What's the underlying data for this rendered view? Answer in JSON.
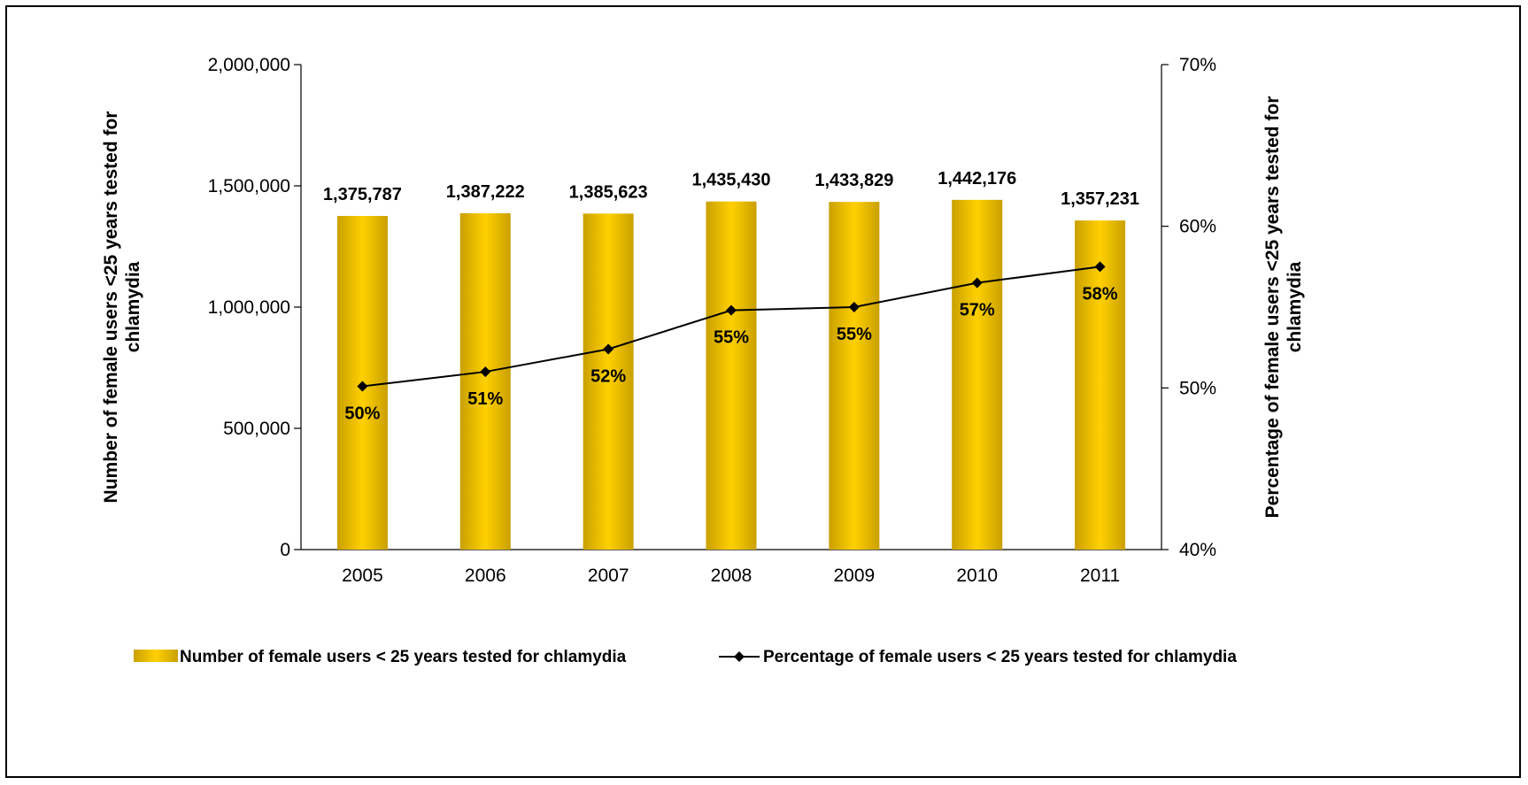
{
  "chart_data": {
    "type": "bar",
    "categories": [
      "2005",
      "2006",
      "2007",
      "2008",
      "2009",
      "2010",
      "2011"
    ],
    "series": [
      {
        "name": "Number of female users < 25 years tested for chlamydia",
        "kind": "bar",
        "axis": "left",
        "values": [
          1375787,
          1387222,
          1385623,
          1435430,
          1433829,
          1442176,
          1357231
        ],
        "labels": [
          "1,375,787",
          "1,387,222",
          "1,385,623",
          "1,435,430",
          "1,433,829",
          "1,442,176",
          "1,357,231"
        ],
        "color": "#f2c200"
      },
      {
        "name": "Percentage of female users < 25 years tested for chlamydia",
        "kind": "line",
        "axis": "right",
        "values": [
          50.1,
          51.0,
          52.4,
          54.8,
          55.0,
          56.5,
          57.5
        ],
        "labels": [
          "50%",
          "51%",
          "52%",
          "55%",
          "55%",
          "57%",
          "58%"
        ],
        "color": "#000000"
      }
    ],
    "ylabel": "Number of female users <25 years tested for chlamydia",
    "ylabel_right": "Percentage of female users <25 years tested for chlamydia",
    "ylim": [
      0,
      2000000
    ],
    "ylim_right": [
      40,
      70
    ],
    "yticks": [
      "0",
      "500,000",
      "1,000,000",
      "1,500,000",
      "2,000,000"
    ],
    "yticks_right": [
      "40%",
      "50%",
      "60%",
      "70%"
    ],
    "legend_position": "bottom",
    "grid": false
  }
}
